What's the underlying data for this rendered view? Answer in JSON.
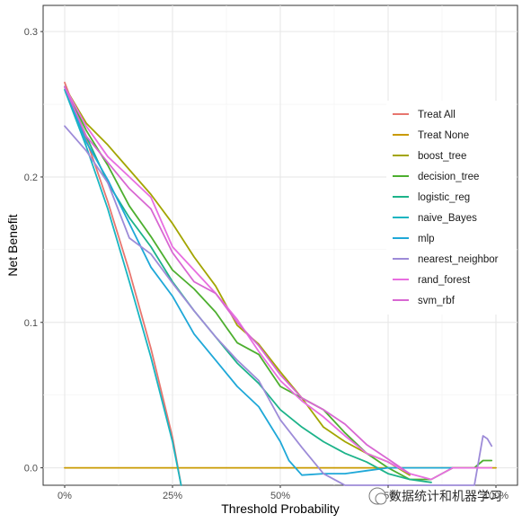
{
  "chart_data": {
    "type": "line",
    "title": "",
    "xlabel": "Threshold Probability",
    "ylabel": "Net Benefit",
    "xlim": [
      -0.05,
      1.05
    ],
    "ylim": [
      -0.012,
      0.318
    ],
    "x_ticks": [
      {
        "value": 0.0,
        "label": "0%"
      },
      {
        "value": 0.25,
        "label": "25%"
      },
      {
        "value": 0.5,
        "label": "50%"
      },
      {
        "value": 0.75,
        "label": "75%"
      },
      {
        "value": 1.0,
        "label": "100%"
      }
    ],
    "y_ticks": [
      {
        "value": 0.0,
        "label": "0.0"
      },
      {
        "value": 0.1,
        "label": "0.1"
      },
      {
        "value": 0.2,
        "label": "0.2"
      },
      {
        "value": 0.3,
        "label": "0.3"
      }
    ],
    "grid": true,
    "legend_position": "right-inside",
    "series": [
      {
        "name": "Treat All",
        "color": "#E7766F",
        "x": [
          0,
          0.05,
          0.1,
          0.15,
          0.2,
          0.25,
          0.27
        ],
        "y": [
          0.265,
          0.226,
          0.183,
          0.135,
          0.082,
          0.021,
          -0.012
        ]
      },
      {
        "name": "Treat None",
        "color": "#C99A00",
        "x": [
          0,
          1.0
        ],
        "y": [
          0,
          0
        ]
      },
      {
        "name": "boost_tree",
        "color": "#A3A500",
        "x": [
          0,
          0.05,
          0.1,
          0.15,
          0.2,
          0.25,
          0.3,
          0.35,
          0.4,
          0.45,
          0.5,
          0.55,
          0.6,
          0.65,
          0.7,
          0.75,
          0.8
        ],
        "y": [
          0.262,
          0.237,
          0.222,
          0.205,
          0.188,
          0.168,
          0.145,
          0.125,
          0.098,
          0.085,
          0.066,
          0.048,
          0.028,
          0.018,
          0.01,
          0.004,
          -0.005
        ]
      },
      {
        "name": "decision_tree",
        "color": "#4DAF2F",
        "x": [
          0,
          0.05,
          0.1,
          0.15,
          0.2,
          0.25,
          0.3,
          0.35,
          0.4,
          0.45,
          0.5,
          0.55,
          0.6,
          0.65,
          0.7,
          0.75,
          0.8,
          0.85,
          0.9,
          0.95,
          0.97,
          0.98,
          0.99
        ],
        "y": [
          0.262,
          0.232,
          0.208,
          0.18,
          0.159,
          0.136,
          0.123,
          0.107,
          0.086,
          0.078,
          0.056,
          0.048,
          0.04,
          0.024,
          0.01,
          0.0,
          -0.008,
          -0.008,
          0.0,
          0.0,
          0.005,
          0.005,
          0.005
        ]
      },
      {
        "name": "logistic_reg",
        "color": "#1DB38A",
        "x": [
          0,
          0.05,
          0.1,
          0.15,
          0.2,
          0.25,
          0.3,
          0.35,
          0.4,
          0.45,
          0.5,
          0.55,
          0.6,
          0.65,
          0.7,
          0.75,
          0.8,
          0.85
        ],
        "y": [
          0.262,
          0.228,
          0.196,
          0.172,
          0.152,
          0.128,
          0.108,
          0.09,
          0.072,
          0.058,
          0.04,
          0.028,
          0.018,
          0.01,
          0.004,
          -0.004,
          -0.008,
          -0.01
        ]
      },
      {
        "name": "naive_Bayes",
        "color": "#19B5C1",
        "x": [
          0,
          0.05,
          0.1,
          0.15,
          0.2,
          0.25,
          0.27
        ],
        "y": [
          0.26,
          0.221,
          0.178,
          0.128,
          0.076,
          0.018,
          -0.012
        ]
      },
      {
        "name": "mlp",
        "color": "#1FA8D8",
        "x": [
          0,
          0.05,
          0.1,
          0.15,
          0.2,
          0.25,
          0.3,
          0.35,
          0.4,
          0.45,
          0.5,
          0.52,
          0.55,
          0.6,
          0.65,
          0.7,
          0.75,
          0.8,
          0.85,
          0.9
        ],
        "y": [
          0.262,
          0.224,
          0.198,
          0.168,
          0.138,
          0.118,
          0.092,
          0.074,
          0.056,
          0.042,
          0.018,
          0.005,
          -0.005,
          -0.004,
          -0.004,
          -0.002,
          0.0,
          0.0,
          0.0,
          0.0
        ]
      },
      {
        "name": "nearest_neighbor",
        "color": "#9D8BD8",
        "x": [
          0,
          0.05,
          0.1,
          0.15,
          0.2,
          0.25,
          0.3,
          0.35,
          0.4,
          0.45,
          0.5,
          0.55,
          0.6,
          0.65,
          0.7,
          0.75,
          0.8,
          0.85,
          0.9,
          0.95,
          0.97,
          0.98,
          0.99
        ],
        "y": [
          0.235,
          0.218,
          0.196,
          0.158,
          0.147,
          0.127,
          0.108,
          0.09,
          0.074,
          0.06,
          0.033,
          0.014,
          -0.004,
          -0.012,
          -0.012,
          -0.012,
          -0.012,
          -0.012,
          -0.012,
          -0.012,
          0.022,
          0.02,
          0.015
        ]
      },
      {
        "name": "rand_forest",
        "color": "#E86EE0",
        "x": [
          0,
          0.05,
          0.1,
          0.15,
          0.2,
          0.25,
          0.3,
          0.35,
          0.4,
          0.45,
          0.5,
          0.55,
          0.6,
          0.65,
          0.7,
          0.75,
          0.8,
          0.85,
          0.9,
          0.95,
          0.99
        ],
        "y": [
          0.262,
          0.235,
          0.214,
          0.2,
          0.186,
          0.152,
          0.136,
          0.12,
          0.102,
          0.08,
          0.06,
          0.046,
          0.035,
          0.022,
          0.01,
          0.004,
          -0.004,
          -0.008,
          0.0,
          0.0,
          0.0
        ]
      },
      {
        "name": "svm_rbf",
        "color": "#D867D2",
        "x": [
          0,
          0.05,
          0.1,
          0.15,
          0.2,
          0.25,
          0.3,
          0.35,
          0.4,
          0.45,
          0.5,
          0.55,
          0.6,
          0.65,
          0.7,
          0.75,
          0.8
        ],
        "y": [
          0.262,
          0.228,
          0.21,
          0.192,
          0.178,
          0.148,
          0.128,
          0.12,
          0.1,
          0.084,
          0.064,
          0.048,
          0.04,
          0.03,
          0.016,
          0.006,
          -0.004
        ]
      }
    ]
  },
  "watermark": {
    "text": "数据统计和机器学习"
  }
}
